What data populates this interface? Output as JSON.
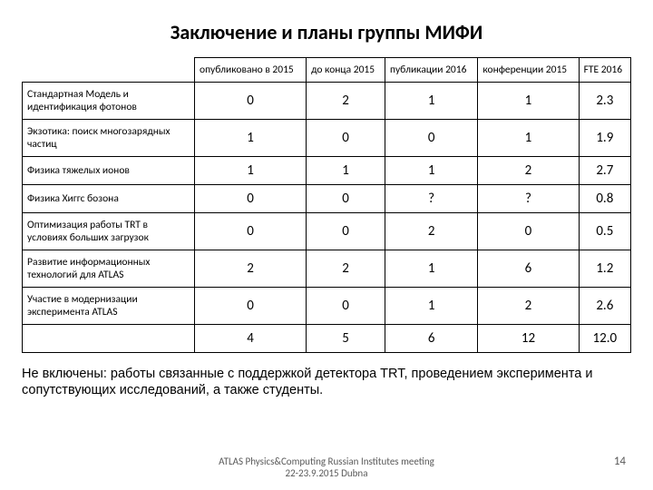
{
  "title": "Заключение и планы группы МИФИ",
  "table": {
    "headers": [
      "опубликовано в 2015",
      "до конца 2015",
      "публикации 2016",
      "конференции 2015",
      "FTE 2016"
    ],
    "rows": [
      {
        "label": "Стандартная Модель и идентификация фотонов",
        "cells": [
          "0",
          "2",
          "1",
          "1",
          "2.3"
        ]
      },
      {
        "label": "Экзотика: поиск многозарядных частиц",
        "cells": [
          "1",
          "0",
          "0",
          "1",
          "1.9"
        ]
      },
      {
        "label": "Физика тяжелых ионов",
        "cells": [
          "1",
          "1",
          "1",
          "2",
          "2.7"
        ]
      },
      {
        "label": "Физика Хиггс бозона",
        "cells": [
          "0",
          "0",
          "?",
          "?",
          "0.8"
        ]
      },
      {
        "label": "Оптимизация работы TRT в условиях больших загрузок",
        "cells": [
          "0",
          "0",
          "2",
          "0",
          "0.5"
        ]
      },
      {
        "label": "Развитие информационных технологий для ATLAS",
        "cells": [
          "2",
          "2",
          "1",
          "6",
          "1.2"
        ]
      },
      {
        "label": "Участие в модернизации эксперимента ATLAS",
        "cells": [
          "0",
          "0",
          "1",
          "2",
          "2.6"
        ]
      },
      {
        "label": "",
        "cells": [
          "4",
          "5",
          "6",
          "12",
          "12.0"
        ]
      }
    ]
  },
  "note": "Не включены: работы связанные с поддержкой детектора TRT, проведением эксперимента и сопутствующих исследований, а также студенты.",
  "footer_line1": "ATLAS Physics&Computing Russian Institutes meeting",
  "footer_line2": "22-23.9.2015 Dubna",
  "page_number": "14"
}
